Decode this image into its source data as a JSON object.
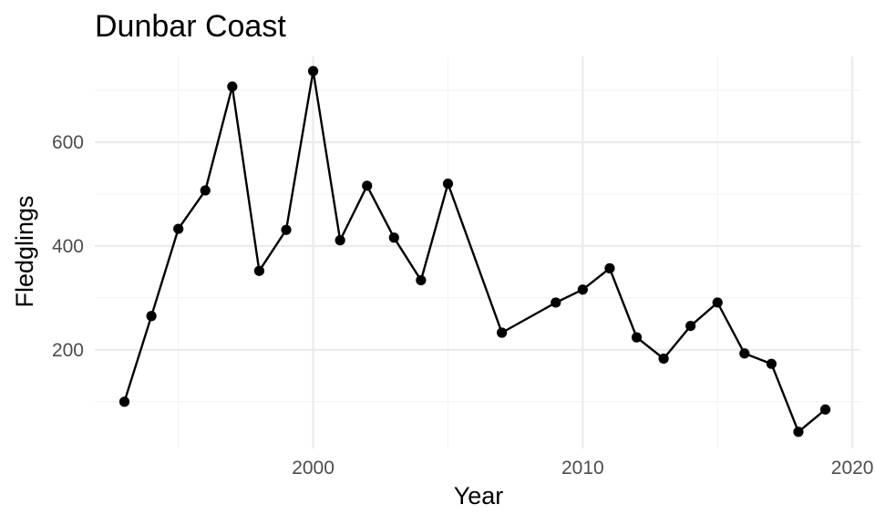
{
  "chart_data": {
    "type": "line",
    "title": "Dunbar Coast",
    "xlabel": "Year",
    "ylabel": "Fledglings",
    "xlim": [
      1991.9,
      2020.3
    ],
    "ylim": [
      10,
      765
    ],
    "x_ticks": [
      2000,
      2010,
      2020
    ],
    "x_minor_ticks": [
      1995,
      2005,
      2015
    ],
    "y_ticks": [
      200,
      400,
      600
    ],
    "y_minor_ticks": [
      100,
      300,
      500,
      700
    ],
    "grid": true,
    "legend": "none",
    "series": [
      {
        "color": "#000000",
        "points": [
          {
            "x": 1993,
            "y": 100
          },
          {
            "x": 1994,
            "y": 265
          },
          {
            "x": 1995,
            "y": 433
          },
          {
            "x": 1996,
            "y": 507
          },
          {
            "x": 1997,
            "y": 707
          },
          {
            "x": 1998,
            "y": 352
          },
          {
            "x": 1999,
            "y": 431
          },
          {
            "x": 2000,
            "y": 737
          },
          {
            "x": 2001,
            "y": 411
          },
          {
            "x": 2002,
            "y": 516
          },
          {
            "x": 2003,
            "y": 416
          },
          {
            "x": 2004,
            "y": 334
          },
          {
            "x": 2005,
            "y": 520
          },
          {
            "x": 2007,
            "y": 233
          },
          {
            "x": 2009,
            "y": 291
          },
          {
            "x": 2010,
            "y": 316
          },
          {
            "x": 2011,
            "y": 357
          },
          {
            "x": 2012,
            "y": 224
          },
          {
            "x": 2013,
            "y": 183
          },
          {
            "x": 2014,
            "y": 246
          },
          {
            "x": 2015,
            "y": 291
          },
          {
            "x": 2016,
            "y": 193
          },
          {
            "x": 2017,
            "y": 173
          },
          {
            "x": 2018,
            "y": 42
          },
          {
            "x": 2019,
            "y": 85
          }
        ]
      }
    ]
  }
}
